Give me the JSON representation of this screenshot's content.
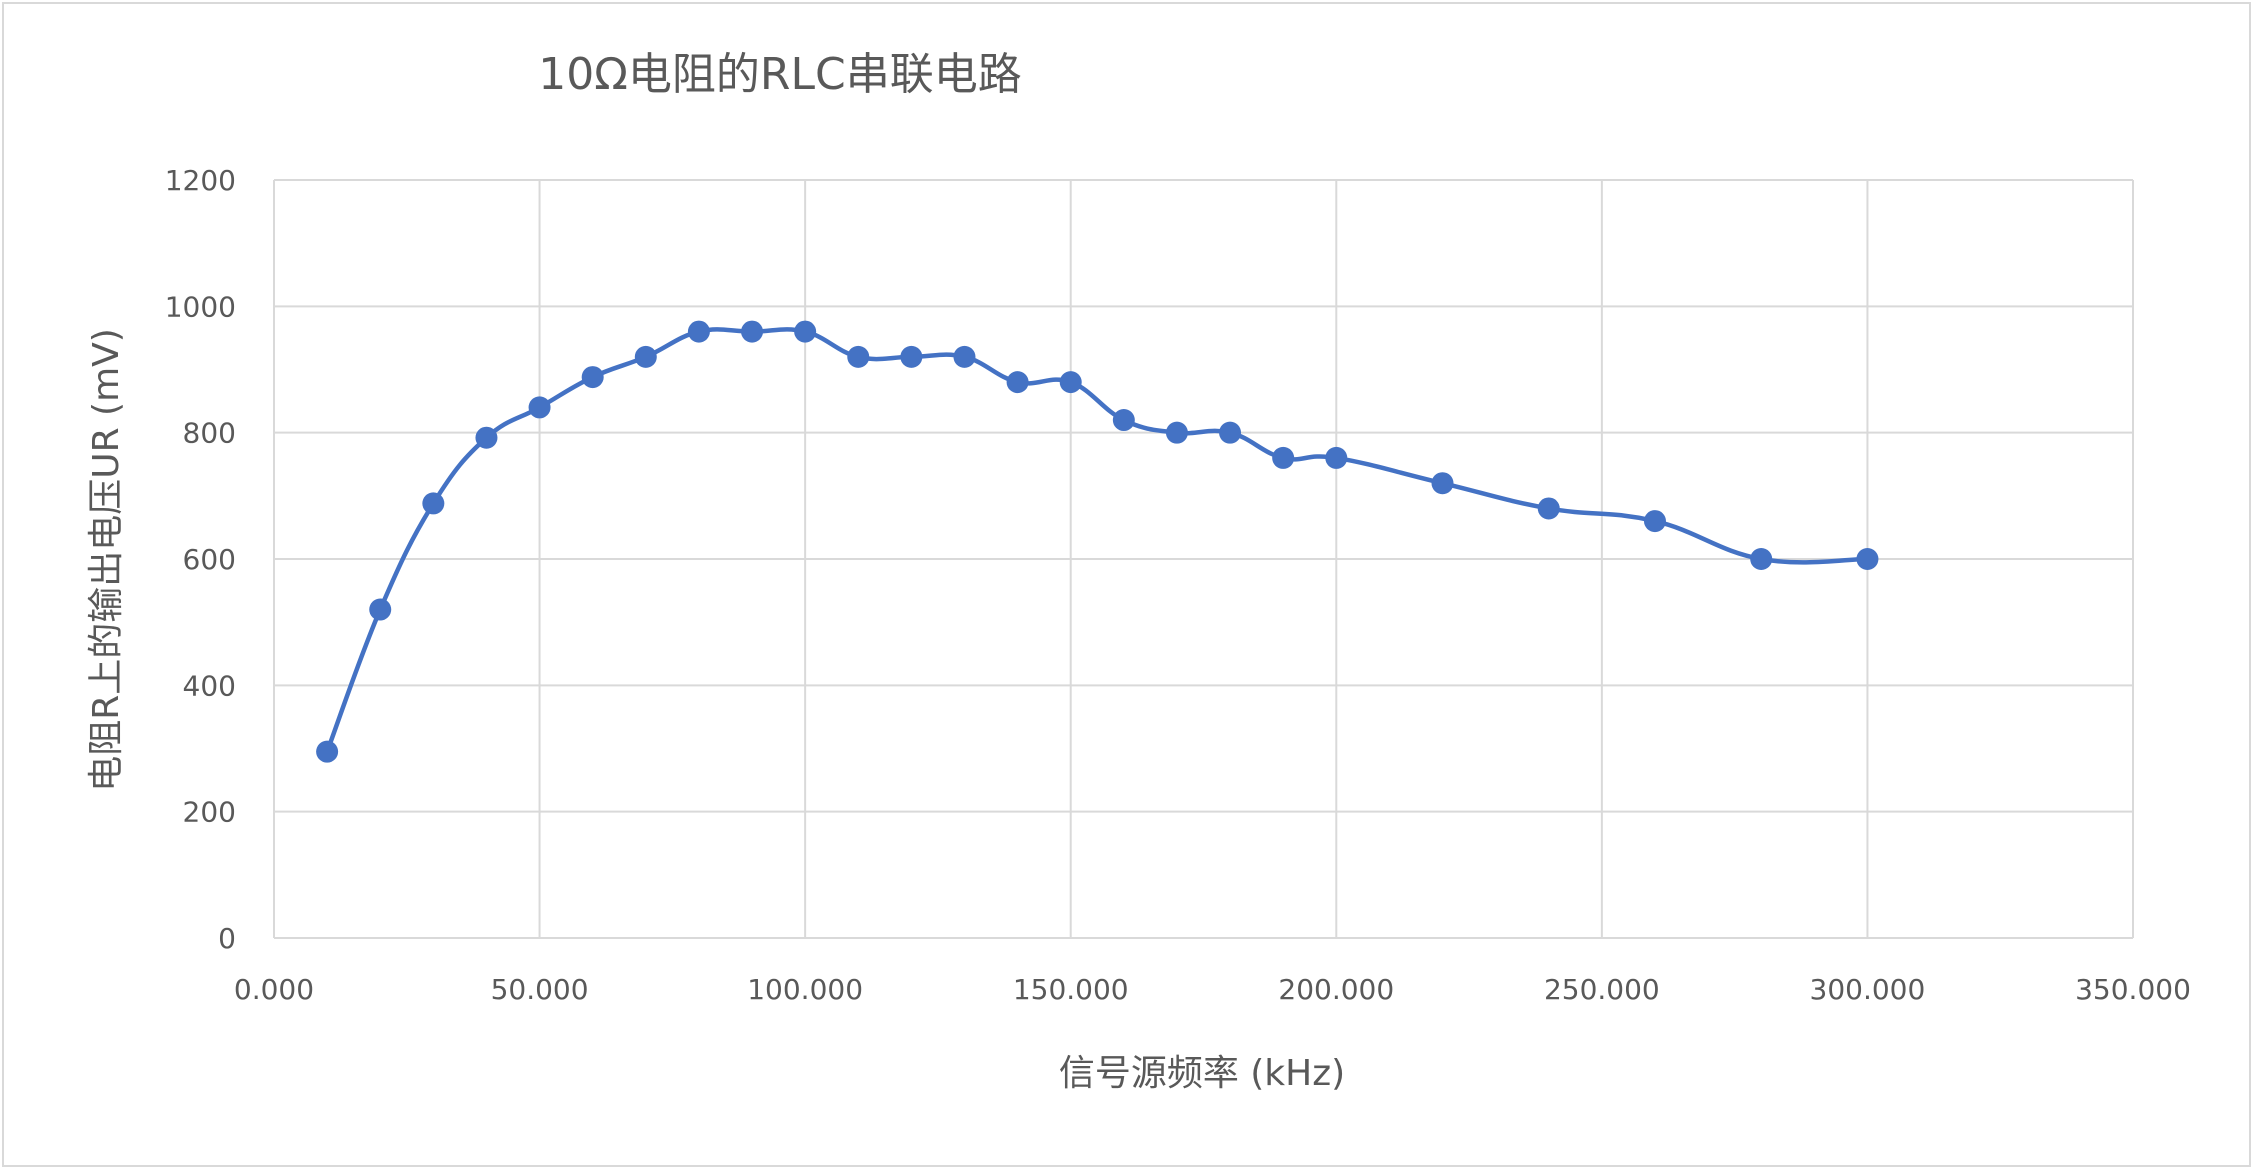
{
  "chart_data": {
    "type": "scatter",
    "title": "10Ω电阻的RLC串联电路",
    "xlabel": "信号源频率 (kHz)",
    "ylabel": "电阻R上的输出电压UR (mV)",
    "xlim": [
      0,
      350
    ],
    "ylim": [
      0,
      1200
    ],
    "xticks": [
      0,
      50,
      100,
      150,
      200,
      250,
      300,
      350
    ],
    "xtick_labels": [
      "0.000",
      "50.000",
      "100.000",
      "150.000",
      "200.000",
      "250.000",
      "300.000",
      "350.000"
    ],
    "yticks": [
      0,
      200,
      400,
      600,
      800,
      1000,
      1200
    ],
    "ytick_labels": [
      "0",
      "200",
      "400",
      "600",
      "800",
      "1000",
      "1200"
    ],
    "grid": true,
    "smooth_line": true,
    "series_color": "#4472C4",
    "x": [
      10,
      20,
      30,
      40,
      50,
      60,
      70,
      80,
      90,
      100,
      110,
      120,
      130,
      140,
      150,
      160,
      170,
      180,
      190,
      200,
      220,
      240,
      260,
      280,
      300
    ],
    "y": [
      295,
      520,
      688,
      792,
      840,
      888,
      920,
      960,
      960,
      960,
      920,
      920,
      920,
      880,
      880,
      820,
      800,
      800,
      760,
      760,
      720,
      680,
      660,
      600,
      600
    ]
  }
}
